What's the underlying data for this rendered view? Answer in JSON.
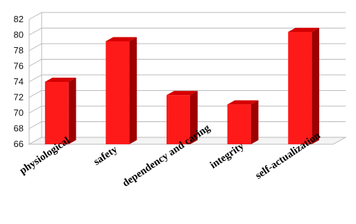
{
  "chart_data": {
    "type": "bar",
    "categories": [
      "physiological",
      "safety",
      "dependency and caring",
      "integrity",
      "self-actualization"
    ],
    "values": [
      74,
      79.2,
      72.3,
      71.1,
      80.4
    ],
    "ylim": [
      66,
      82
    ],
    "yticks": [
      66,
      68,
      70,
      72,
      74,
      76,
      78,
      80,
      82
    ],
    "grid": true,
    "colors": {
      "bar_front": "#ff1a1a",
      "bar_side": "#9e0000",
      "bar_top": "#d40000"
    }
  }
}
